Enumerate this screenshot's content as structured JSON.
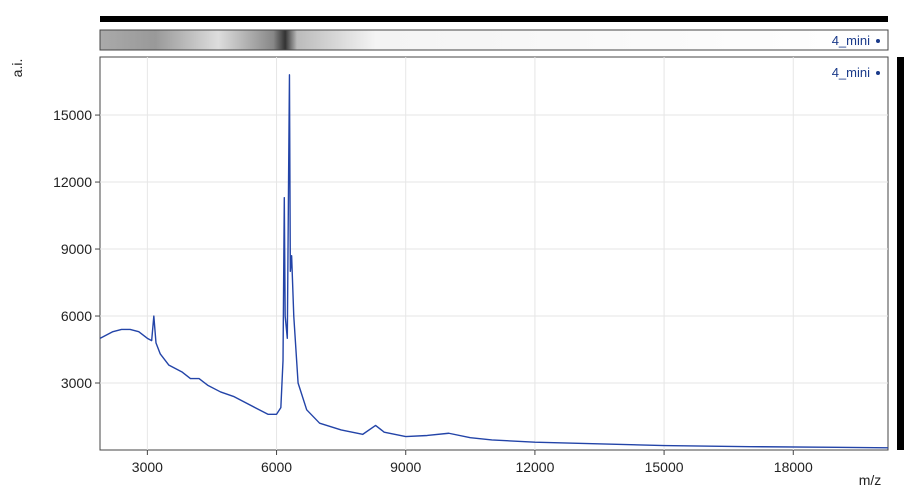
{
  "chart_data": {
    "type": "line",
    "x_label": "m/z",
    "y_label": "a.i.",
    "x": [
      1900,
      2000,
      2200,
      2400,
      2600,
      2800,
      3000,
      3100,
      3150,
      3200,
      3300,
      3500,
      3800,
      4000,
      4200,
      4400,
      4700,
      5000,
      5500,
      5800,
      6000,
      6100,
      6150,
      6180,
      6200,
      6250,
      6280,
      6300,
      6320,
      6350,
      6400,
      6500,
      6700,
      7000,
      7500,
      8000,
      8300,
      8500,
      9000,
      9500,
      10000,
      10500,
      11000,
      12000,
      13000,
      15000,
      17000,
      19000,
      20200
    ],
    "series": [
      {
        "name": "4_mini",
        "color": "#2344a8",
        "values": [
          5000,
          5100,
          5300,
          5400,
          5400,
          5300,
          5000,
          4900,
          6000,
          4800,
          4300,
          3800,
          3500,
          3200,
          3200,
          2900,
          2600,
          2400,
          1900,
          1600,
          1600,
          1900,
          4000,
          11300,
          6000,
          5000,
          12300,
          16800,
          8000,
          8700,
          6000,
          3000,
          1800,
          1200,
          900,
          700,
          1100,
          800,
          600,
          650,
          750,
          550,
          450,
          350,
          300,
          200,
          150,
          120,
          100
        ]
      }
    ],
    "xlim": [
      1900,
      20200
    ],
    "ylim": [
      0,
      17600
    ],
    "xticks": [
      3000,
      6000,
      9000,
      12000,
      15000,
      18000
    ],
    "yticks": [
      3000,
      6000,
      9000,
      12000,
      15000
    ],
    "grid": true
  }
}
